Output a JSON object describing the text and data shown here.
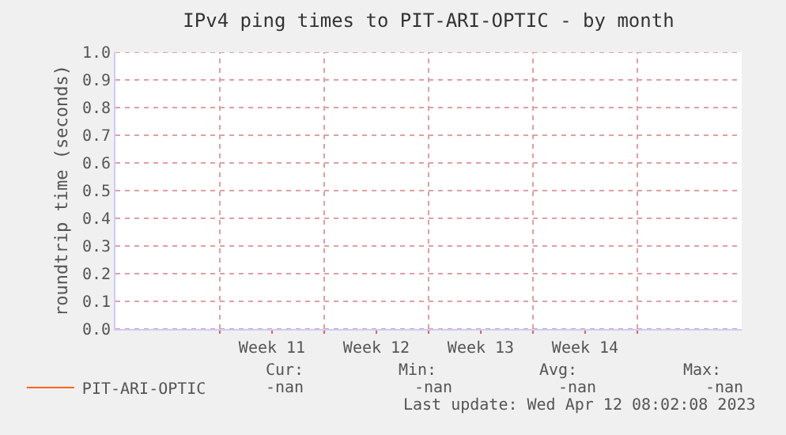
{
  "chart_data": {
    "type": "line",
    "title": "IPv4 ping times to PIT-ARI-OPTIC - by month",
    "ylabel": "roundtrip time (seconds)",
    "categories": [
      null,
      "Week 11",
      "Week 12",
      "Week 13",
      "Week 14",
      null
    ],
    "ylim": [
      0,
      1
    ],
    "yticks": [
      {
        "value": 0,
        "label": "0.0"
      },
      {
        "value": 0.1,
        "label": "0.1"
      },
      {
        "value": 0.2,
        "label": "0.2"
      },
      {
        "value": 0.3,
        "label": "0.3"
      },
      {
        "value": 0.4,
        "label": "0.4"
      },
      {
        "value": 0.5,
        "label": "0.5"
      },
      {
        "value": 0.6,
        "label": "0.6"
      },
      {
        "value": 0.7,
        "label": "0.7"
      },
      {
        "value": 0.8,
        "label": "0.8"
      },
      {
        "value": 0.9,
        "label": "0.9"
      },
      {
        "value": 1,
        "label": "1.0"
      }
    ],
    "grid": true,
    "legend": "bottom left",
    "series": [
      {
        "name": "PIT-ARI-OPTIC",
        "color": "#ff6600",
        "values": [
          null,
          null,
          null,
          null,
          null,
          null
        ]
      }
    ],
    "annotations": [
      "Cur:",
      "Min:",
      "Avg:",
      "Max:",
      "-nan",
      "-nan",
      "-nan",
      "-nan",
      "Last update: Wed Apr 12 08:02:08 2023"
    ]
  }
}
